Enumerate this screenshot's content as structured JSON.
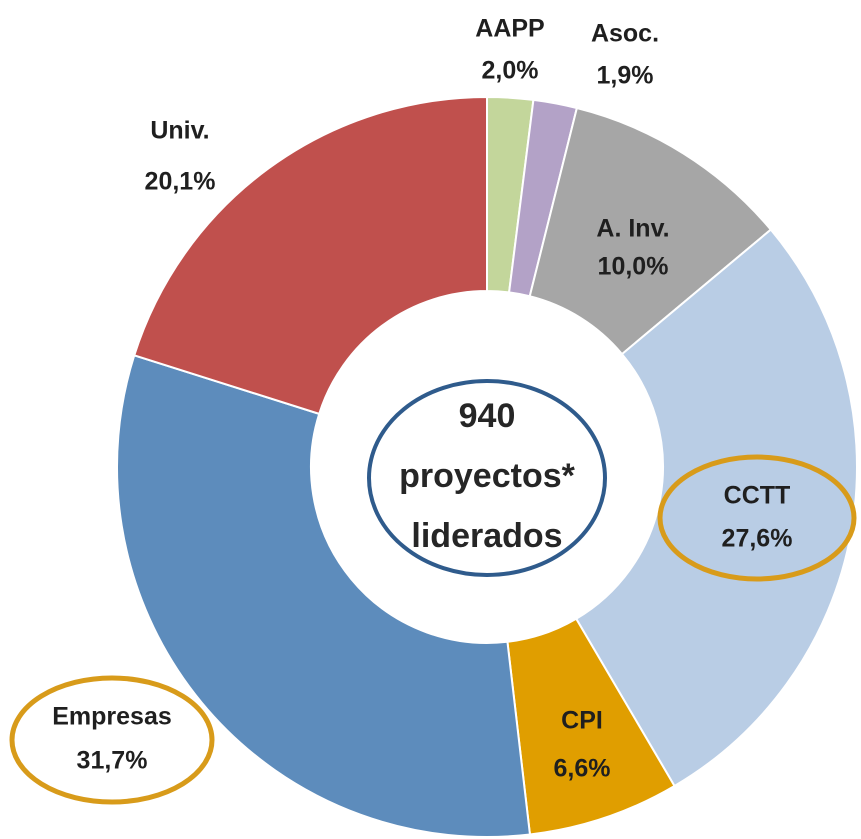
{
  "chart_data": {
    "type": "donut",
    "categories": [
      "AAPP",
      "Asoc.",
      "A. Inv.",
      "CCTT",
      "CPI",
      "Empresas",
      "Univ."
    ],
    "values": [
      2.0,
      1.9,
      10.0,
      27.6,
      6.6,
      31.7,
      20.1
    ],
    "value_labels": [
      "2,0%",
      "1,9%",
      "10,0%",
      "27,6%",
      "6,6%",
      "31,7%",
      "20,1%"
    ],
    "colors": [
      "#c3d69b",
      "#b3a2c7",
      "#a6a6a6",
      "#b9cde5",
      "#e09e00",
      "#5d8cbc",
      "#c0504d"
    ],
    "center_text": [
      "940",
      "proyectos*",
      "liderados"
    ]
  }
}
